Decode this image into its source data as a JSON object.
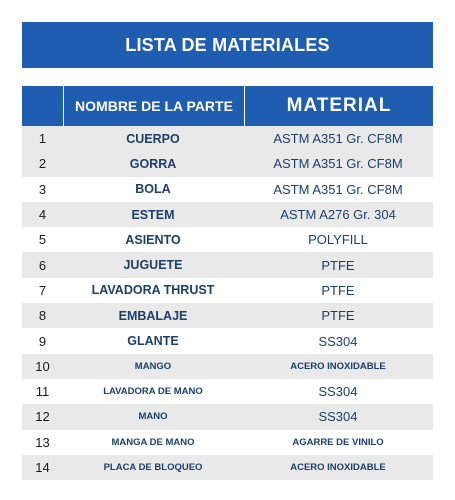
{
  "title": "LISTA DE MATERIALES",
  "headers": {
    "name": "NOMBRE DE LA PARTE",
    "material": "MATERIAL"
  },
  "rows": [
    {
      "num": "1",
      "name": "CUERPO",
      "material": "ASTM A351 Gr. CF8M"
    },
    {
      "num": "2",
      "name": "GORRA",
      "material": "ASTM A351 Gr. CF8M"
    },
    {
      "num": "3",
      "name": "BOLA",
      "material": "ASTM A351 Gr. CF8M"
    },
    {
      "num": "4",
      "name": "ESTEM",
      "material": "ASTM A276 Gr. 304"
    },
    {
      "num": "5",
      "name": "ASIENTO",
      "material": "POLYFILL"
    },
    {
      "num": "6",
      "name": "JUGUETE",
      "material": "PTFE"
    },
    {
      "num": "7",
      "name": "LAVADORA THRUST",
      "material": "PTFE"
    },
    {
      "num": "8",
      "name": "EMBALAJE",
      "material": "PTFE"
    },
    {
      "num": "9",
      "name": "GLANTE",
      "material": "SS304"
    },
    {
      "num": "10",
      "name": "MANGO",
      "material": "ACERO INOXIDABLE"
    },
    {
      "num": "11",
      "name": "LAVADORA DE MANO",
      "material": "SS304"
    },
    {
      "num": "12",
      "name": "MANO",
      "material": "SS304"
    },
    {
      "num": "13",
      "name": "MANGA DE MANO",
      "material": "AGARRE DE VINILO"
    },
    {
      "num": "14",
      "name": "PLACA DE BLOQUEO",
      "material": "ACERO INOXIDABLE"
    }
  ],
  "colors": {
    "header_blue": "#1e5db0",
    "text_blue": "#1c3f6b",
    "stripe": "#e9e9e9"
  }
}
